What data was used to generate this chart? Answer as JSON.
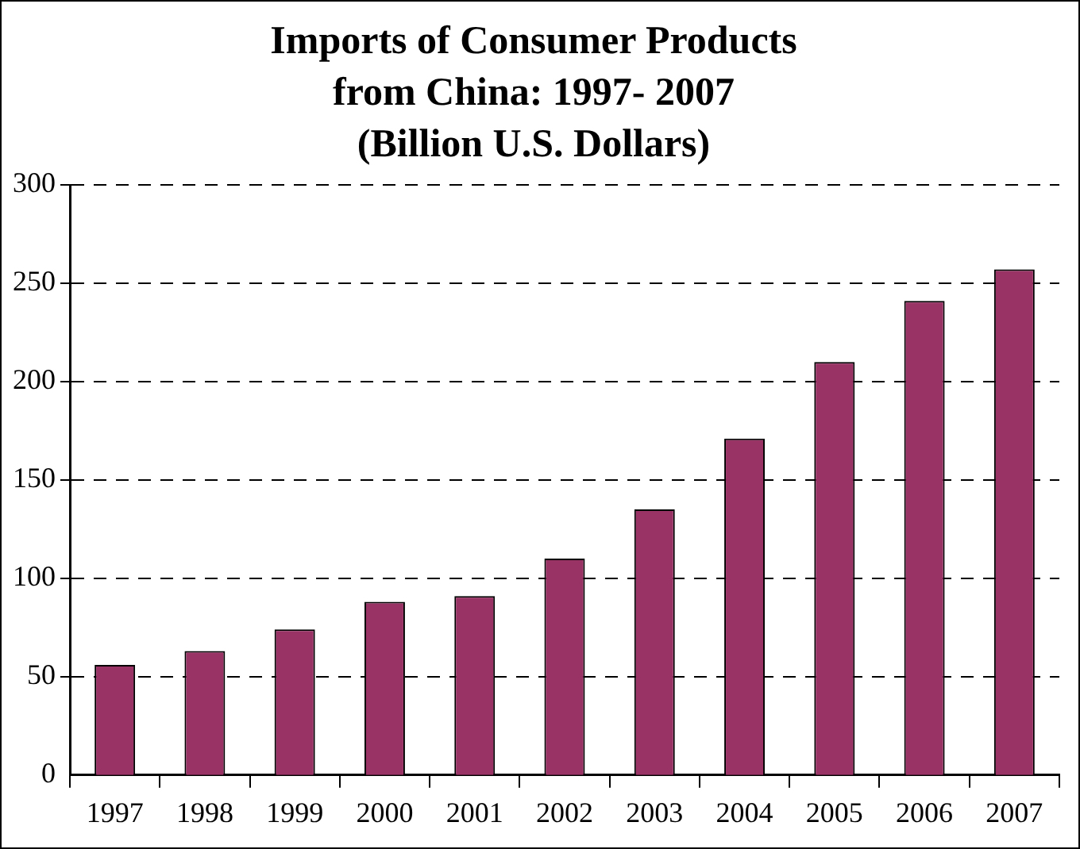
{
  "chart_data": {
    "type": "bar",
    "title": "Imports of Consumer Products\nfrom China: 1997- 2007\n(Billion U.S. Dollars)",
    "categories": [
      "1997",
      "1998",
      "1999",
      "2000",
      "2001",
      "2002",
      "2003",
      "2004",
      "2005",
      "2006",
      "2007"
    ],
    "values": [
      56,
      63,
      74,
      88,
      91,
      110,
      135,
      171,
      210,
      241,
      257
    ],
    "color": "#993366",
    "ylim": [
      0,
      300
    ],
    "yticks": [
      0,
      50,
      100,
      150,
      200,
      250,
      300
    ],
    "grid": "y",
    "legend": false
  }
}
